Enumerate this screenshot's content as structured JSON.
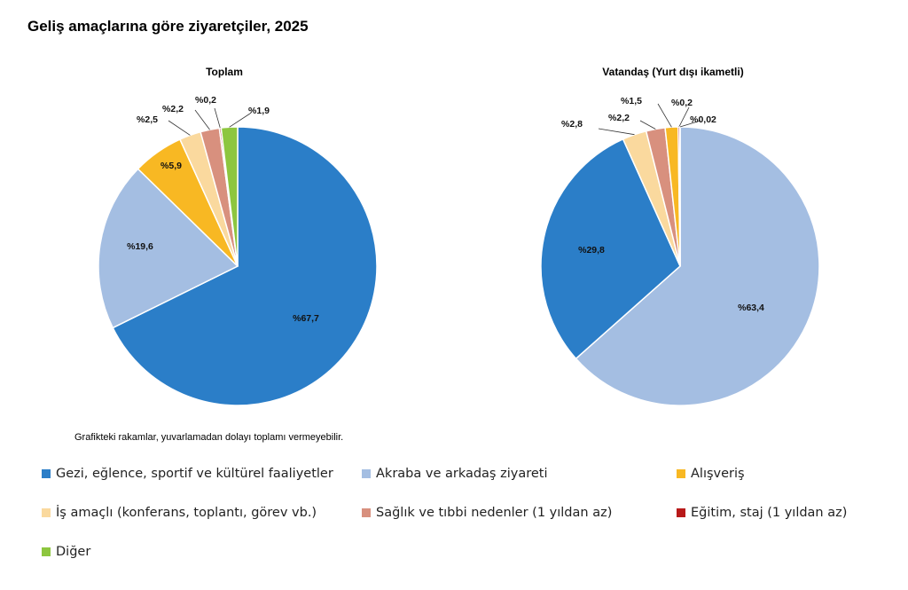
{
  "title": "Geliş amaçlarına göre ziyaretçiler, 2025",
  "note": "Grafikteki rakamlar, yuvarlamadan dolayı toplamı vermeyebilir.",
  "chart_data": [
    {
      "type": "pie",
      "title": "Toplam",
      "slices": [
        {
          "category": "Gezi, eğlence, sportif ve kültürel faaliyetler",
          "value": 67.7,
          "label": "%67,7",
          "color": "#2B7EC8"
        },
        {
          "category": "Akraba ve arkadaş ziyareti",
          "value": 19.6,
          "label": "%19,6",
          "color": "#A4BEE2"
        },
        {
          "category": "Alışveriş",
          "value": 5.9,
          "label": "%5,9",
          "color": "#F8B823"
        },
        {
          "category": "İş amaçlı (konferans, toplantı, görev vb.)",
          "value": 2.5,
          "label": "%2,5",
          "color": "#FAD99E"
        },
        {
          "category": "Sağlık ve tıbbi nedenler (1 yıldan az)",
          "value": 2.2,
          "label": "%2,2",
          "color": "#D8907E"
        },
        {
          "category": "Eğitim, staj (1 yıldan az)",
          "value": 0.2,
          "label": "%0,2",
          "color": "#B81A1A"
        },
        {
          "category": "Diğer",
          "value": 1.9,
          "label": "%1,9",
          "color": "#8DC63F"
        }
      ]
    },
    {
      "type": "pie",
      "title": "Vatandaş (Yurt dışı ikametli)",
      "slices": [
        {
          "category": "Akraba ve arkadaş ziyareti",
          "value": 63.4,
          "label": "%63,4",
          "color": "#A4BEE2"
        },
        {
          "category": "Gezi, eğlence, sportif ve kültürel faaliyetler",
          "value": 29.8,
          "label": "%29,8",
          "color": "#2B7EC8"
        },
        {
          "category": "İş amaçlı (konferans, toplantı, görev vb.)",
          "value": 2.8,
          "label": "%2,8",
          "color": "#FAD99E"
        },
        {
          "category": "Sağlık ve tıbbi nedenler (1 yıldan az)",
          "value": 2.2,
          "label": "%2,2",
          "color": "#D8907E"
        },
        {
          "category": "Alışveriş",
          "value": 1.5,
          "label": "%1,5",
          "color": "#F8B823"
        },
        {
          "category": "Eğitim, staj (1 yıldan az)",
          "value": 0.2,
          "label": "%0,2",
          "color": "#B81A1A"
        },
        {
          "category": "Diğer",
          "value": 0.02,
          "label": "%0,02",
          "color": "#8DC63F"
        }
      ]
    }
  ],
  "legend": [
    {
      "label": "Gezi, eğlence, sportif ve kültürel faaliyetler",
      "color": "#2B7EC8"
    },
    {
      "label": "Akraba ve arkadaş ziyareti",
      "color": "#A4BEE2"
    },
    {
      "label": "Alışveriş",
      "color": "#F8B823"
    },
    {
      "label": "İş amaçlı (konferans, toplantı, görev vb.)",
      "color": "#FAD99E"
    },
    {
      "label": "Sağlık ve tıbbi nedenler (1 yıldan az)",
      "color": "#D8907E"
    },
    {
      "label": "Eğitim, staj (1 yıldan az)",
      "color": "#B81A1A"
    },
    {
      "label": "Diğer",
      "color": "#8DC63F"
    }
  ]
}
